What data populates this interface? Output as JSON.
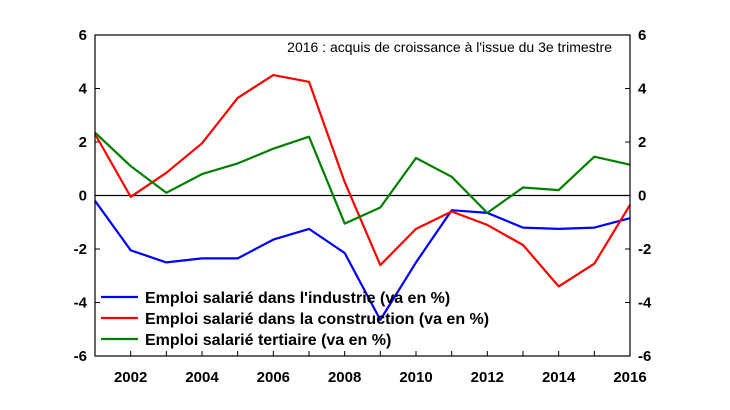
{
  "chart_data": {
    "type": "line",
    "title": "",
    "annotation": "2016 : acquis de croissance à l'issue du 3e trimestre",
    "xlabel": "",
    "ylabel": "",
    "xlim": [
      2001,
      2016
    ],
    "ylim": [
      -6,
      6
    ],
    "x_ticks": [
      2002,
      2004,
      2006,
      2008,
      2010,
      2012,
      2014,
      2016
    ],
    "y_ticks": [
      -6,
      -4,
      -2,
      0,
      2,
      4,
      6
    ],
    "dual_y_axis": true,
    "grid": false,
    "legend_position": "bottom-left",
    "x": [
      2001,
      2002,
      2003,
      2004,
      2005,
      2006,
      2007,
      2008,
      2009,
      2010,
      2011,
      2012,
      2013,
      2014,
      2015,
      2016
    ],
    "series": [
      {
        "name": "Emploi salarié dans l'industrie (va en %)",
        "color": "#0000ff",
        "values": [
          -0.2,
          -2.05,
          -2.5,
          -2.35,
          -2.35,
          -1.65,
          -1.25,
          -2.15,
          -4.65,
          -2.5,
          -0.55,
          -0.65,
          -1.2,
          -1.25,
          -1.2,
          -0.85
        ]
      },
      {
        "name": "Emploi salarié dans la construction (va en %)",
        "color": "#ff0000",
        "values": [
          2.3,
          -0.05,
          0.85,
          1.95,
          3.65,
          4.5,
          4.25,
          0.5,
          -2.6,
          -1.25,
          -0.6,
          -1.1,
          -1.85,
          -3.4,
          -2.55,
          -0.35
        ]
      },
      {
        "name": "Emploi salarié tertiaire (va en %)",
        "color": "#008000",
        "values": [
          2.35,
          1.1,
          0.1,
          0.8,
          1.2,
          1.75,
          2.2,
          -1.05,
          -0.45,
          1.4,
          0.7,
          -0.65,
          0.3,
          0.2,
          1.45,
          1.15
        ]
      }
    ]
  }
}
